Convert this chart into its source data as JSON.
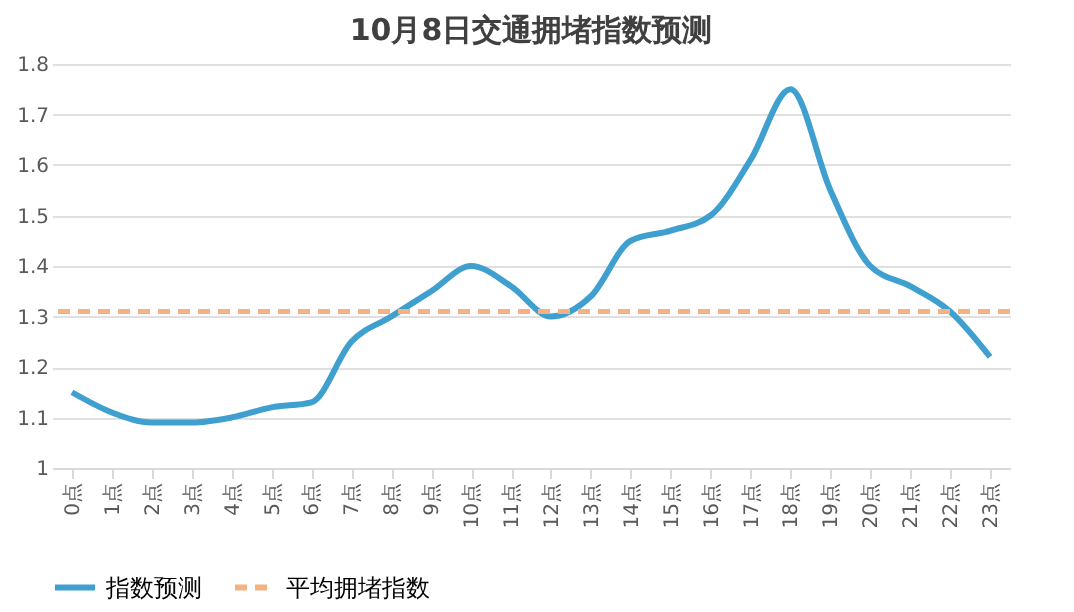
{
  "chart_data": {
    "type": "line",
    "title": "10月8日交通拥堵指数预测",
    "categories": [
      "0点",
      "1点",
      "2点",
      "3点",
      "4点",
      "5点",
      "6点",
      "7点",
      "8点",
      "9点",
      "10点",
      "11点",
      "12点",
      "13点",
      "14点",
      "15点",
      "16点",
      "17点",
      "18点",
      "19点",
      "20点",
      "21点",
      "22点",
      "23点"
    ],
    "series": [
      {
        "name": "指数预测",
        "color": "#3fa0d0",
        "values": [
          1.15,
          1.11,
          1.09,
          1.09,
          1.1,
          1.12,
          1.13,
          1.25,
          1.3,
          1.35,
          1.4,
          1.36,
          1.3,
          1.34,
          1.45,
          1.47,
          1.5,
          1.61,
          1.75,
          1.55,
          1.4,
          1.36,
          1.31,
          1.22
        ]
      }
    ],
    "ref_lines": [
      {
        "axis": "y",
        "value": 1.31,
        "label": "平均拥堵指数",
        "color": "#f4b183",
        "line_style": "dashed"
      }
    ],
    "ylim": [
      1,
      1.8
    ],
    "yticks": [
      1,
      1.1,
      1.2,
      1.3,
      1.4,
      1.5,
      1.6,
      1.7,
      1.8
    ],
    "grid": "y",
    "legend": "bottom",
    "marker": "none",
    "line_style": "solid"
  }
}
